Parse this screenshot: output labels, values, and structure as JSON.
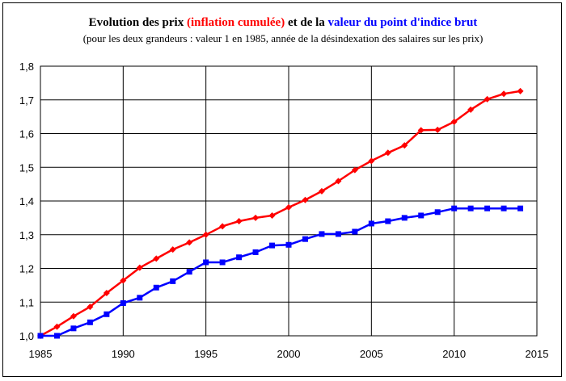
{
  "title": {
    "part1": "Evolution des prix ",
    "part2": "(inflation cumulée)",
    "part3": " et de la ",
    "part4": "valeur du point d'indice brut"
  },
  "subtitle": "(pour les deux grandeurs : valeur 1 en 1985, année de la désindexation des salaires sur les prix)",
  "colors": {
    "prices": "#ff0000",
    "index": "#0000ff",
    "grid": "#000000"
  },
  "chart_data": {
    "type": "line",
    "xlim": [
      1985,
      2015
    ],
    "ylim": [
      1.0,
      1.8
    ],
    "x_ticks": [
      1985,
      1990,
      1995,
      2000,
      2005,
      2010,
      2015
    ],
    "x_tick_labels": [
      "1985",
      "1990",
      "1995",
      "2000",
      "2005",
      "2010",
      "2015"
    ],
    "y_ticks": [
      1.0,
      1.1,
      1.2,
      1.3,
      1.4,
      1.5,
      1.6,
      1.7,
      1.8
    ],
    "y_tick_labels": [
      "1,0",
      "1,1",
      "1,2",
      "1,3",
      "1,4",
      "1,5",
      "1,6",
      "1,7",
      "1,8"
    ],
    "grid": true,
    "x": [
      1985,
      1986,
      1987,
      1988,
      1989,
      1990,
      1991,
      1992,
      1993,
      1994,
      1995,
      1996,
      1997,
      1998,
      1999,
      2000,
      2001,
      2002,
      2003,
      2004,
      2005,
      2006,
      2007,
      2008,
      2009,
      2010,
      2011,
      2012,
      2013,
      2014
    ],
    "series": [
      {
        "marker": "diamond",
        "color": "#ff0000",
        "values": [
          1.0,
          1.027,
          1.058,
          1.086,
          1.127,
          1.164,
          1.202,
          1.229,
          1.256,
          1.277,
          1.3,
          1.325,
          1.34,
          1.35,
          1.357,
          1.381,
          1.403,
          1.429,
          1.459,
          1.492,
          1.519,
          1.543,
          1.565,
          1.61,
          1.611,
          1.635,
          1.671,
          1.702,
          1.718,
          1.726
        ]
      },
      {
        "marker": "square",
        "color": "#0000ff",
        "values": [
          1.0,
          1.0,
          1.022,
          1.04,
          1.064,
          1.097,
          1.113,
          1.143,
          1.162,
          1.19,
          1.218,
          1.218,
          1.233,
          1.248,
          1.268,
          1.27,
          1.287,
          1.302,
          1.302,
          1.309,
          1.333,
          1.34,
          1.35,
          1.357,
          1.367,
          1.378,
          1.378,
          1.378,
          1.378,
          1.378
        ]
      }
    ]
  }
}
